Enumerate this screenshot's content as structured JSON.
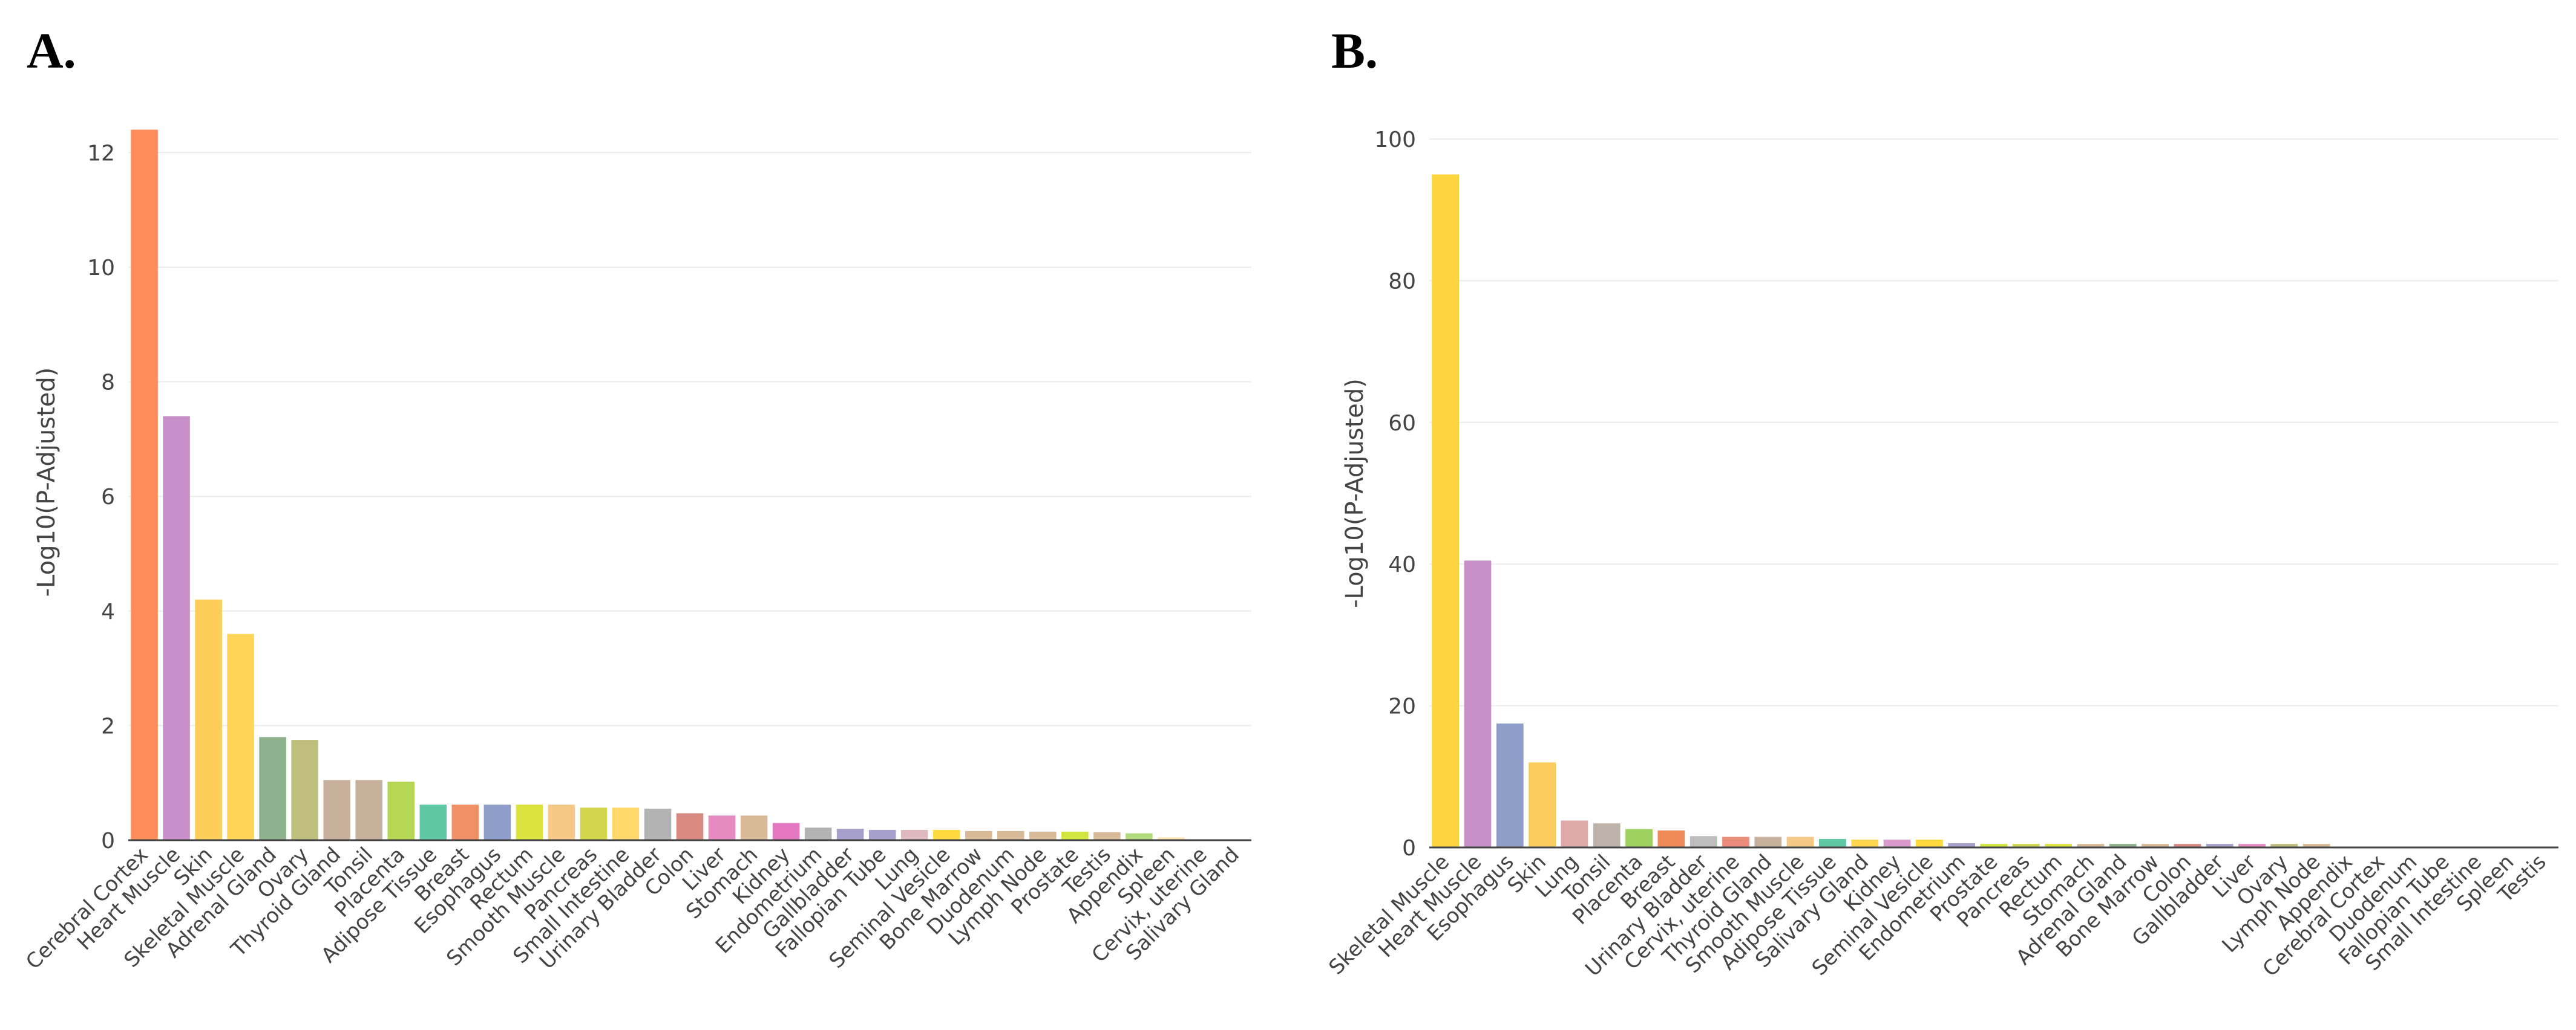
{
  "chart_data": [
    {
      "panel": "A.",
      "type": "bar",
      "title": "",
      "xlabel": "",
      "ylabel": "-Log10(P-Adjusted)",
      "ylim": [
        0,
        12.5
      ],
      "yticks": [
        0,
        2,
        4,
        6,
        8,
        10,
        12
      ],
      "grid": true,
      "categories": [
        "Cerebral Cortex",
        "Heart Muscle",
        "Skin",
        "Skeletal Muscle",
        "Adrenal Gland",
        "Ovary",
        "Thyroid Gland",
        "Tonsil",
        "Placenta",
        "Adipose Tissue",
        "Breast",
        "Esophagus",
        "Rectum",
        "Smooth Muscle",
        "Pancreas",
        "Small Intestine",
        "Urinary Bladder",
        "Colon",
        "Liver",
        "Stomach",
        "Kidney",
        "Endometrium",
        "Gallbladder",
        "Fallopian Tube",
        "Lung",
        "Seminal Vesicle",
        "Bone Marrow",
        "Duodenum",
        "Lymph Node",
        "Prostate",
        "Testis",
        "Appendix",
        "Spleen",
        "Cervix, uterine",
        "Salivary Gland"
      ],
      "values": [
        12.4,
        7.4,
        4.2,
        3.6,
        1.8,
        1.75,
        1.05,
        1.05,
        1.02,
        0.62,
        0.62,
        0.62,
        0.62,
        0.62,
        0.57,
        0.57,
        0.55,
        0.47,
        0.43,
        0.43,
        0.3,
        0.22,
        0.2,
        0.18,
        0.18,
        0.18,
        0.16,
        0.16,
        0.15,
        0.15,
        0.14,
        0.12,
        0.05,
        0.01,
        0.0
      ],
      "colors": [
        "#FF8C5A",
        "#C88FC8",
        "#FDCD5A",
        "#FED557",
        "#8DB08D",
        "#C0BE7C",
        "#C8B19C",
        "#C8B19C",
        "#B3D653",
        "#5FC7A2",
        "#F19065",
        "#8F9DCB",
        "#DCE23E",
        "#F6C885",
        "#D2D64C",
        "#FFD86A",
        "#B3B3B3",
        "#D98B81",
        "#E68AC2",
        "#D8B998",
        "#E378C0",
        "#B3B3B3",
        "#A6A0CC",
        "#A6A0CC",
        "#DEB9C0",
        "#FFDA3E",
        "#D8B998",
        "#D8B998",
        "#D8B998",
        "#D1E53E",
        "#D8B998",
        "#B2D97C",
        "#FCE3B3",
        "#E0E0E0",
        "#E0E0E0"
      ]
    },
    {
      "panel": "B.",
      "type": "bar",
      "title": "",
      "xlabel": "",
      "ylabel": "-Log10(P-Adjusted)",
      "ylim": [
        0,
        100
      ],
      "yticks": [
        0,
        20,
        40,
        60,
        80,
        100
      ],
      "grid": true,
      "categories": [
        "Skeletal Muscle",
        "Heart Muscle",
        "Esophagus",
        "Skin",
        "Lung",
        "Tonsil",
        "Placenta",
        "Breast",
        "Urinary Bladder",
        "Cervix, uterine",
        "Thyroid Gland",
        "Smooth Muscle",
        "Adipose Tissue",
        "Salivary Gland",
        "Kidney",
        "Seminal Vesicle",
        "Endometrium",
        "Prostate",
        "Pancreas",
        "Rectum",
        "Stomach",
        "Adrenal Gland",
        "Bone Marrow",
        "Colon",
        "Gallbladder",
        "Liver",
        "Ovary",
        "Lymph Node",
        "Appendix",
        "Cerebral Cortex",
        "Duodenum",
        "Fallopian Tube",
        "Small Intestine",
        "Spleen",
        "Testis"
      ],
      "values": [
        95,
        40.5,
        17.5,
        12,
        3.8,
        3.4,
        2.6,
        2.4,
        1.6,
        1.5,
        1.5,
        1.5,
        1.2,
        1.1,
        1.1,
        1.1,
        0.6,
        0.5,
        0.5,
        0.5,
        0.5,
        0.5,
        0.5,
        0.5,
        0.5,
        0.5,
        0.5,
        0.5,
        0,
        0,
        0,
        0,
        0,
        0,
        0
      ],
      "colors": [
        "#FED43F",
        "#C88FC8",
        "#8F9DCB",
        "#FCCD5E",
        "#DDA9A9",
        "#BEB3A8",
        "#9DD05C",
        "#F08A59",
        "#BDBDBD",
        "#EB8D7B",
        "#C8B19C",
        "#F6C885",
        "#5FC7A2",
        "#FFD64F",
        "#D99ACB",
        "#FFD83E",
        "#A6A0CC",
        "#D1E53E",
        "#D2D64C",
        "#DCE23E",
        "#D8B998",
        "#8DB08D",
        "#D8B998",
        "#D98B81",
        "#A6A0CC",
        "#E68AC2",
        "#C0BE7C",
        "#D8B998",
        "#E0E0E0",
        "#E0E0E0",
        "#E0E0E0",
        "#E0E0E0",
        "#E0E0E0",
        "#E0E0E0",
        "#E0E0E0"
      ]
    }
  ]
}
